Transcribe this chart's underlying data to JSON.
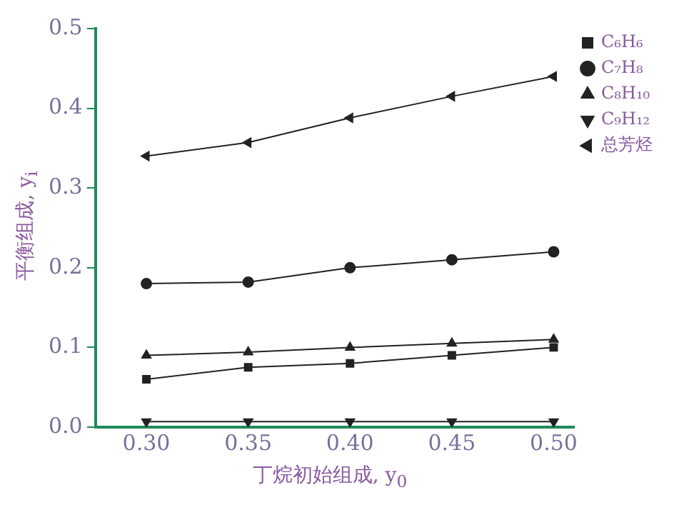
{
  "chart_data": {
    "type": "line",
    "xlabel": "丁烷初始组成, y$_{0}$",
    "ylabel": "平衡组成, y$_{i}$",
    "x": [
      0.3,
      0.35,
      0.4,
      0.45,
      0.5
    ],
    "xlim": [
      0.275,
      0.51
    ],
    "xticks": [
      {
        "value": 0.3,
        "label": "0.30"
      },
      {
        "value": 0.35,
        "label": "0.35"
      },
      {
        "value": 0.4,
        "label": "0.40"
      },
      {
        "value": 0.45,
        "label": "0.45"
      },
      {
        "value": 0.5,
        "label": "0.50"
      }
    ],
    "ylim": [
      0,
      0.5
    ],
    "yticks": [
      {
        "value": 0,
        "label": "0.0"
      },
      0.1,
      0.2,
      0.3,
      0.4,
      0.5
    ],
    "series": [
      {
        "name": "C₆H₆",
        "color": "#222222",
        "marker": "square",
        "values": [
          0.06,
          0.075,
          0.08,
          0.09,
          0.1
        ]
      },
      {
        "name": "C₇H₈",
        "color": "#222222",
        "marker": "circle",
        "values": [
          0.18,
          0.182,
          0.2,
          0.21,
          0.22
        ]
      },
      {
        "name": "C₈H₁₀",
        "color": "#222222",
        "marker": "triangle",
        "values": [
          0.09,
          0.094,
          0.1,
          0.105,
          0.11
        ]
      },
      {
        "name": "C₉H₁₂",
        "color": "#222222",
        "marker": "triangle-down",
        "values": [
          0.007,
          0.007,
          0.007,
          0.007,
          0.007
        ]
      },
      {
        "name": "总芳烃",
        "color": "#222222",
        "marker": "triangle-left",
        "values": [
          0.34,
          0.357,
          0.388,
          0.415,
          0.44
        ]
      }
    ],
    "legend": "right",
    "grid": false,
    "line_style": "solid"
  }
}
